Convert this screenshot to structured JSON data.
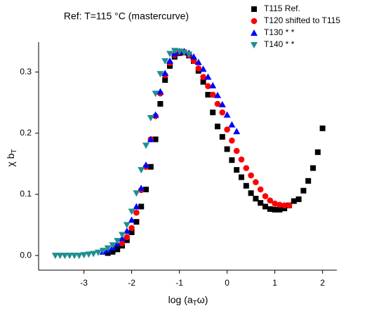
{
  "chart_data": {
    "type": "scatter",
    "title": "Ref: T=115 °C (mastercurve)",
    "y_label_parts": [
      "χ b",
      "T"
    ],
    "x_label_parts": [
      "log (a",
      "T",
      "ω)"
    ],
    "xlim": [
      -3.95,
      2.3
    ],
    "ylim": [
      -0.024,
      0.349
    ],
    "xticks": [
      -3,
      -2,
      -1,
      0,
      1,
      2
    ],
    "yticks": [
      {
        "value": 0,
        "label": "0.0"
      },
      0.1,
      0.2,
      0.3
    ],
    "legend": "top-right",
    "series": [
      {
        "name": "T115 Ref.",
        "color": "#000000",
        "marker": "square",
        "x": [
          -2.5,
          -2.4,
          -2.3,
          -2.2,
          -2.1,
          -2.0,
          -1.9,
          -1.8,
          -1.7,
          -1.6,
          -1.5,
          -1.4,
          -1.3,
          -1.2,
          -1.1,
          -1.0,
          -0.9,
          -0.8,
          -0.7,
          -0.6,
          -0.5,
          -0.4,
          -0.3,
          -0.2,
          -0.1,
          0.0,
          0.1,
          0.2,
          0.3,
          0.4,
          0.5,
          0.6,
          0.7,
          0.8,
          0.9,
          1.0,
          1.1,
          1.2,
          1.3,
          1.4,
          1.5,
          1.6,
          1.7,
          1.8,
          1.9,
          2.0
        ],
        "values": [
          0.004,
          0.006,
          0.01,
          0.016,
          0.025,
          0.038,
          0.055,
          0.08,
          0.108,
          0.145,
          0.19,
          0.248,
          0.287,
          0.31,
          0.325,
          0.331,
          0.332,
          0.327,
          0.318,
          0.302,
          0.284,
          0.263,
          0.234,
          0.211,
          0.194,
          0.174,
          0.156,
          0.14,
          0.128,
          0.114,
          0.102,
          0.093,
          0.086,
          0.08,
          0.076,
          0.075,
          0.075,
          0.077,
          0.082,
          0.089,
          0.092,
          0.106,
          0.122,
          0.143,
          0.169,
          0.208
        ]
      },
      {
        "name": "T120 shifted to T115",
        "color": "#ff0000",
        "marker": "circle",
        "x": [
          -2.2,
          -2.1,
          -2.0,
          -1.9,
          -1.8,
          -1.7,
          -1.6,
          -1.5,
          -1.4,
          -1.3,
          -1.2,
          -1.1,
          -1.0,
          -0.9,
          -0.8,
          -0.7,
          -0.6,
          -0.5,
          -0.4,
          -0.3,
          -0.2,
          -0.1,
          0.0,
          0.1,
          0.2,
          0.3,
          0.4,
          0.5,
          0.6,
          0.7,
          0.8,
          0.9,
          1.0,
          1.1,
          1.2,
          1.3
        ],
        "values": [
          0.02,
          0.03,
          0.045,
          0.07,
          0.107,
          0.145,
          0.19,
          0.228,
          0.265,
          0.295,
          0.315,
          0.328,
          0.333,
          0.333,
          0.328,
          0.318,
          0.306,
          0.292,
          0.277,
          0.263,
          0.248,
          0.234,
          0.206,
          0.188,
          0.171,
          0.157,
          0.143,
          0.131,
          0.12,
          0.108,
          0.097,
          0.09,
          0.085,
          0.083,
          0.082,
          0.082
        ]
      },
      {
        "name": "T130  * *",
        "color": "#0000ff",
        "marker": "triangle-up",
        "x": [
          -2.6,
          -2.5,
          -2.4,
          -2.3,
          -2.2,
          -2.1,
          -2.0,
          -1.9,
          -1.8,
          -1.7,
          -1.6,
          -1.5,
          -1.4,
          -1.3,
          -1.2,
          -1.1,
          -1.0,
          -0.9,
          -0.8,
          -0.7,
          -0.6,
          -0.5,
          -0.4,
          -0.3,
          -0.2,
          -0.1,
          0.0,
          0.1,
          0.2
        ],
        "values": [
          0.006,
          0.009,
          0.013,
          0.019,
          0.028,
          0.04,
          0.058,
          0.08,
          0.11,
          0.148,
          0.19,
          0.23,
          0.268,
          0.298,
          0.318,
          0.33,
          0.334,
          0.334,
          0.331,
          0.325,
          0.316,
          0.305,
          0.292,
          0.278,
          0.262,
          0.247,
          0.23,
          0.214,
          0.203
        ]
      },
      {
        "name": "T140  * *",
        "color": "#1f8f8f",
        "marker": "triangle-down",
        "x": [
          -3.6,
          -3.5,
          -3.4,
          -3.3,
          -3.2,
          -3.1,
          -3.0,
          -2.9,
          -2.8,
          -2.7,
          -2.6,
          -2.5,
          -2.4,
          -2.3,
          -2.2,
          -2.1,
          -2.0,
          -1.9,
          -1.8,
          -1.7,
          -1.6,
          -1.5,
          -1.4,
          -1.3,
          -1.2,
          -1.1,
          -1.0,
          -0.9,
          -0.8
        ],
        "values": [
          0,
          0,
          0,
          0,
          0,
          0,
          0.001,
          0.002,
          0.003,
          0.005,
          0.008,
          0.012,
          0.017,
          0.024,
          0.034,
          0.05,
          0.072,
          0.102,
          0.14,
          0.18,
          0.225,
          0.265,
          0.297,
          0.318,
          0.33,
          0.335,
          0.334,
          0.332,
          0.329
        ]
      }
    ]
  }
}
